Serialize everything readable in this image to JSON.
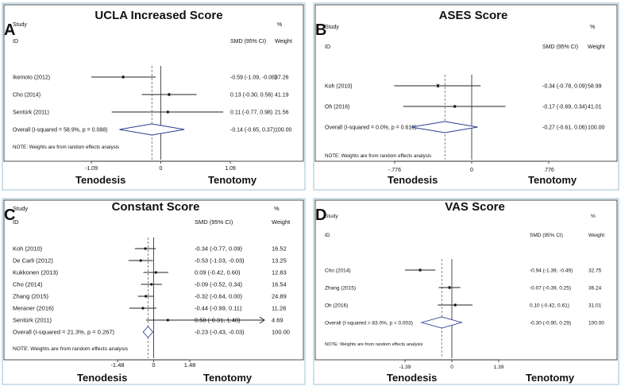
{
  "chart_data": [
    {
      "type": "forest",
      "panel_label": "A",
      "title": "UCLA Increased Score",
      "header": {
        "study": "Study",
        "id": "ID",
        "effect": "SMD (95% CI)",
        "pct": "%",
        "weight": "Weight"
      },
      "axis": {
        "min": -1.09,
        "max": 1.09,
        "ticks": [
          -1.09,
          0,
          1.09
        ],
        "tick_labels": [
          "-1.09",
          "0",
          "1.09"
        ]
      },
      "x_labels": {
        "left": "Tenodesis",
        "right": "Tenotomy"
      },
      "studies": [
        {
          "name": "Ikemoto (2012)",
          "est": -0.59,
          "lo": -1.09,
          "hi": -0.08,
          "label": "-0.59 (-1.09, -0.08)",
          "weight": "37.26"
        },
        {
          "name": "Cho (2014)",
          "est": 0.13,
          "lo": -0.3,
          "hi": 0.56,
          "label": "0.13 (-0.30, 0.56)",
          "weight": "41.19"
        },
        {
          "name": "Sentürk (2011)",
          "est": 0.11,
          "lo": -0.77,
          "hi": 0.98,
          "label": "0.11 (-0.77, 0.98)",
          "weight": "21.56"
        }
      ],
      "overall": {
        "name": "Overall  (I-squared = 58.9%, p = 0.088)",
        "est": -0.14,
        "lo": -0.65,
        "hi": 0.37,
        "label": "-0.14 (-0.65, 0.37)",
        "weight": "100.00"
      },
      "note": "NOTE: Weights are from random effects analysis"
    },
    {
      "type": "forest",
      "panel_label": "B",
      "title": "ASES Score",
      "header": {
        "study": "Study",
        "id": "ID",
        "effect": "SMD (95% CI)",
        "pct": "%",
        "weight": "Weight"
      },
      "axis": {
        "min": -0.776,
        "max": 0.776,
        "ticks": [
          -0.776,
          0,
          0.776
        ],
        "tick_labels": [
          "-.776",
          "0",
          ".776"
        ]
      },
      "x_labels": {
        "left": "Tenodesis",
        "right": "Tenotomy"
      },
      "studies": [
        {
          "name": "Koh (2010)",
          "est": -0.34,
          "lo": -0.78,
          "hi": 0.09,
          "label": "-0.34 (-0.78, 0.09)",
          "weight": "58.99"
        },
        {
          "name": "Oh (2016)",
          "est": -0.17,
          "lo": -0.69,
          "hi": 0.34,
          "label": "-0.17 (-0.69, 0.34)",
          "weight": "41.01"
        }
      ],
      "overall": {
        "name": "Overall  (I-squared = 0.0%, p = 0.619)",
        "est": -0.27,
        "lo": -0.61,
        "hi": 0.06,
        "label": "-0.27 (-0.61, 0.06)",
        "weight": "100.00"
      },
      "note": "NOTE: Weights are from random effects analysis"
    },
    {
      "type": "forest",
      "panel_label": "C",
      "title": "Constant Score",
      "header": {
        "study": "Study",
        "id": "ID",
        "effect": "SMD (95% CI)",
        "pct": "%",
        "weight": "Weight"
      },
      "axis": {
        "min": -1.48,
        "max": 1.48,
        "ticks": [
          -1.48,
          0,
          1.48
        ],
        "tick_labels": [
          "-1.48",
          "0",
          "1.48"
        ]
      },
      "x_labels": {
        "left": "Tenodesis",
        "right": "Tenotomy"
      },
      "studies": [
        {
          "name": "Koh (2010)",
          "est": -0.34,
          "lo": -0.77,
          "hi": 0.09,
          "label": "-0.34 (-0.77, 0.09)",
          "weight": "16.52"
        },
        {
          "name": "De Carli (2012)",
          "est": -0.53,
          "lo": -1.03,
          "hi": -0.03,
          "label": "-0.53 (-1.03, -0.03)",
          "weight": "13.25"
        },
        {
          "name": "Kukkonen (2013)",
          "est": 0.09,
          "lo": -0.42,
          "hi": 0.6,
          "label": "0.09 (-0.42, 0.60)",
          "weight": "12.83"
        },
        {
          "name": "Cho (2014)",
          "est": -0.09,
          "lo": -0.52,
          "hi": 0.34,
          "label": "-0.09 (-0.52, 0.34)",
          "weight": "16.54"
        },
        {
          "name": "Zhang (2015)",
          "est": -0.32,
          "lo": -0.64,
          "hi": 0.0,
          "label": "-0.32 (-0.64, 0.00)",
          "weight": "24.89"
        },
        {
          "name": "Meraner (2016)",
          "est": -0.44,
          "lo": -0.99,
          "hi": 0.11,
          "label": "-0.44 (-0.99, 0.11)",
          "weight": "11.28"
        },
        {
          "name": "Sentürk (2011)",
          "est": 0.58,
          "lo": -0.31,
          "hi": 1.48,
          "label": "0.58 (-0.31, 1.48)",
          "weight": "4.69",
          "arrow": true
        }
      ],
      "overall": {
        "name": "Overall  (I-squared = 21.3%, p = 0.267)",
        "est": -0.23,
        "lo": -0.43,
        "hi": -0.03,
        "label": "-0.23 (-0.43, -0.03)",
        "weight": "100.00"
      },
      "note": "NOTE: Weights are from random effects analysis"
    },
    {
      "type": "forest",
      "panel_label": "D",
      "title": "VAS Score",
      "header": {
        "study": "Study",
        "id": "ID",
        "effect": "SMD (95% CI)",
        "pct": "%",
        "weight": "Weight"
      },
      "axis": {
        "min": -1.39,
        "max": 1.39,
        "ticks": [
          -1.39,
          0,
          1.39
        ],
        "tick_labels": [
          "-1.39",
          "0",
          "1.39"
        ]
      },
      "x_labels": {
        "left": "Tenodesis",
        "right": "Tenotomy"
      },
      "studies": [
        {
          "name": "Cho (2014)",
          "est": -0.94,
          "lo": -1.39,
          "hi": -0.49,
          "label": "-0.94 (-1.39, -0.49)",
          "weight": "32.75"
        },
        {
          "name": "Zhang (2015)",
          "est": -0.07,
          "lo": -0.39,
          "hi": 0.25,
          "label": "-0.07 (-0.39, 0.25)",
          "weight": "36.24"
        },
        {
          "name": "Oh (2016)",
          "est": 0.1,
          "lo": -0.42,
          "hi": 0.61,
          "label": "0.10 (-0.42, 0.61)",
          "weight": "31.01"
        }
      ],
      "overall": {
        "name": "Overall  (I-squared = 83.0%, p = 0.003)",
        "est": -0.3,
        "lo": -0.9,
        "hi": 0.29,
        "label": "-0.30 (-0.90, 0.29)",
        "weight": "100.00"
      },
      "note": "NOTE: Weights are from random effects analysis"
    }
  ]
}
